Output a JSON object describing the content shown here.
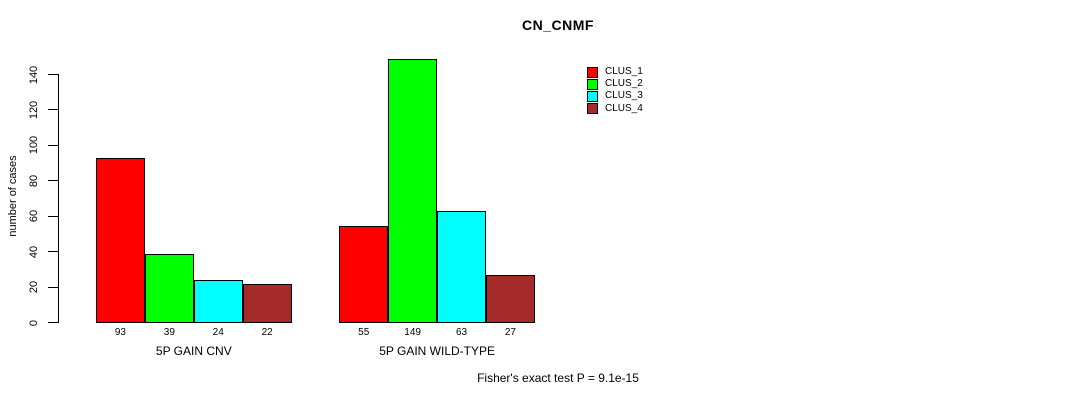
{
  "chart_data": {
    "type": "bar",
    "title": "CN_CNMF",
    "xlabel": "",
    "ylabel": "number of cases",
    "ylim": [
      0,
      140
    ],
    "yticks": [
      0,
      20,
      40,
      60,
      80,
      100,
      120,
      140
    ],
    "grid": false,
    "legend_position": "top-right-inside",
    "categories": [
      "5P GAIN CNV",
      "5P GAIN WILD-TYPE"
    ],
    "series": [
      {
        "name": "CLUS_1",
        "color": "#FF0000",
        "values": [
          93,
          55
        ]
      },
      {
        "name": "CLUS_2",
        "color": "#00FF00",
        "values": [
          39,
          149
        ]
      },
      {
        "name": "CLUS_3",
        "color": "#00FFFF",
        "values": [
          24,
          63
        ]
      },
      {
        "name": "CLUS_4",
        "color": "#A52A2A",
        "values": [
          22,
          27
        ]
      }
    ],
    "bar_value_labels": [
      [
        93,
        39,
        24,
        22
      ],
      [
        55,
        149,
        63,
        27
      ]
    ],
    "annotation": "Fisher's exact test P = 9.1e-15"
  }
}
